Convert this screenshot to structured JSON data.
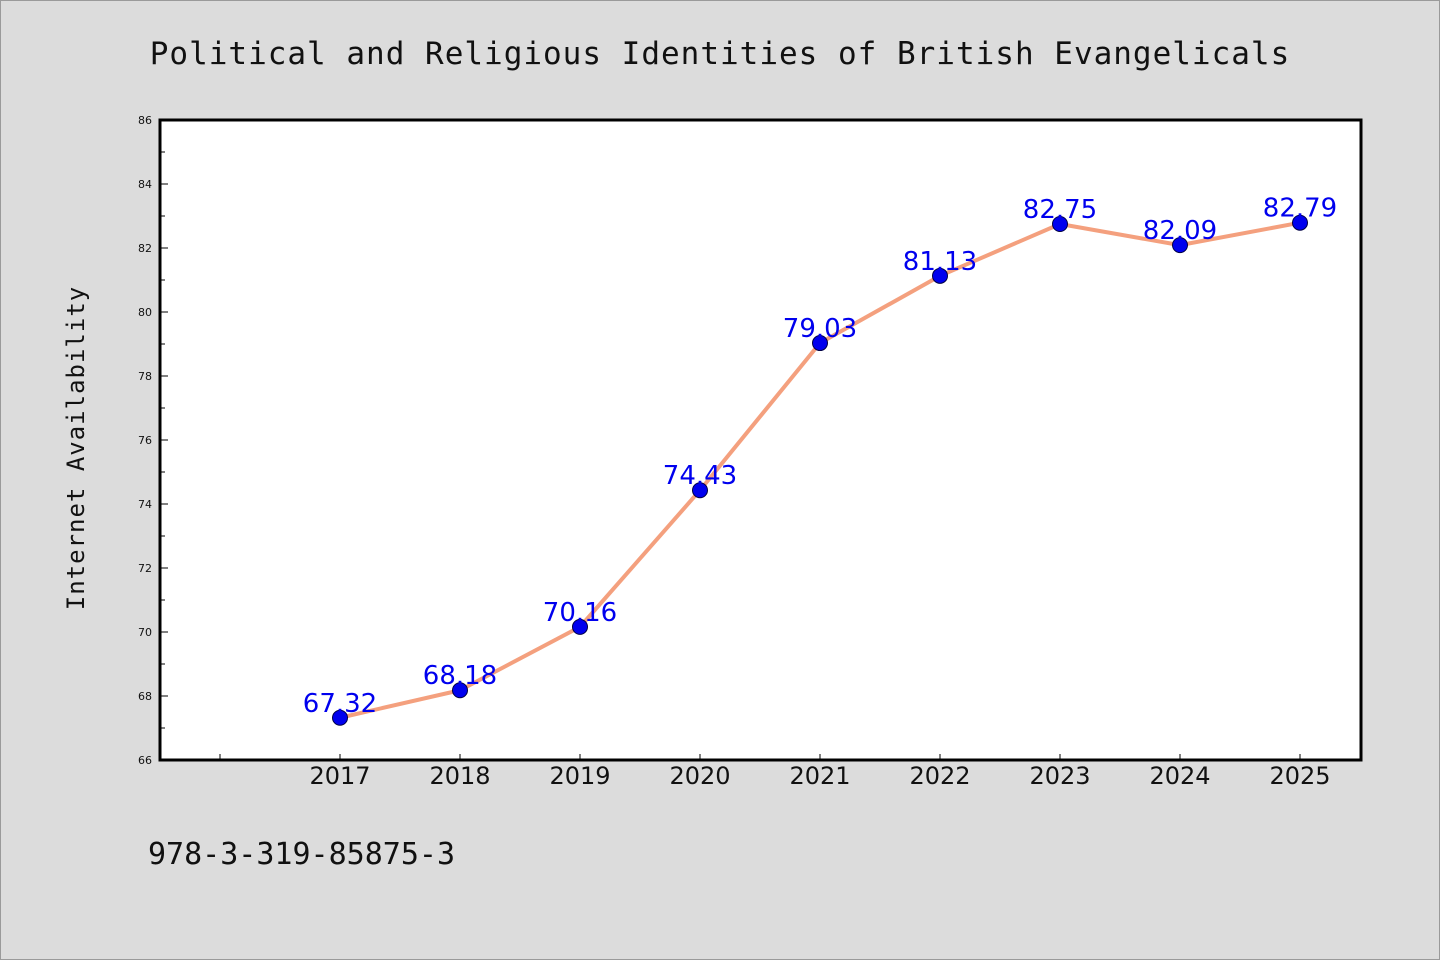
{
  "chart_data": {
    "type": "line",
    "title": "Political and Religious Identities of British Evangelicals",
    "xlabel": "",
    "ylabel": "Internet Availability",
    "categories": [
      "2017",
      "2018",
      "2019",
      "2020",
      "2021",
      "2022",
      "2023",
      "2024",
      "2025"
    ],
    "series": [
      {
        "values": [
          67.32,
          68.18,
          70.16,
          74.43,
          79.03,
          81.13,
          82.75,
          82.09,
          82.79
        ],
        "labels": [
          "67.32",
          "68.18",
          "70.16",
          "74.43",
          "79.03",
          "81.13",
          "82.75",
          "82.09",
          "82.79"
        ],
        "line_color": "#f4a07e",
        "marker_color": "#0000ee"
      }
    ],
    "ylim": [
      66,
      86
    ],
    "yticks": [
      "66",
      "68",
      "70",
      "72",
      "74",
      "76",
      "78",
      "80",
      "82",
      "84",
      "86"
    ],
    "grid": false,
    "legend": "none"
  },
  "footer": {
    "isbn": "978-3-319-85875-3"
  },
  "colors": {
    "background": "#dcdcdc",
    "plot_background": "#ffffff",
    "axis": "#000000"
  }
}
